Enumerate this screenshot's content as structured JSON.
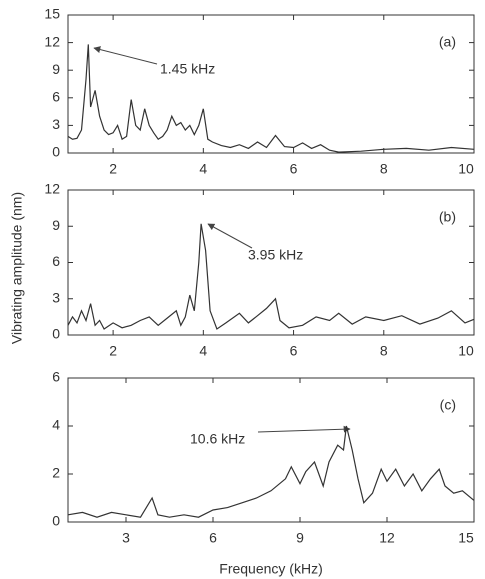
{
  "chart_data": [
    {
      "type": "line",
      "panel_label": "(a)",
      "annotation": "1.45 kHz",
      "color": "#333333",
      "xlim": [
        1,
        10
      ],
      "ylim": [
        0,
        15
      ],
      "xticks": [
        2,
        4,
        6,
        8,
        10
      ],
      "yticks": [
        0,
        3,
        6,
        9,
        12,
        15
      ],
      "x": [
        1.0,
        1.1,
        1.2,
        1.3,
        1.4,
        1.45,
        1.5,
        1.6,
        1.7,
        1.8,
        1.9,
        2.0,
        2.1,
        2.2,
        2.3,
        2.4,
        2.5,
        2.6,
        2.7,
        2.8,
        2.9,
        3.0,
        3.1,
        3.2,
        3.3,
        3.4,
        3.5,
        3.6,
        3.7,
        3.8,
        3.9,
        4.0,
        4.1,
        4.2,
        4.4,
        4.6,
        4.8,
        5.0,
        5.2,
        5.4,
        5.6,
        5.8,
        6.0,
        6.2,
        6.4,
        6.6,
        6.8,
        7.0,
        7.5,
        8.0,
        8.5,
        9.0,
        9.5,
        10
      ],
      "values": [
        1.8,
        1.5,
        1.6,
        2.5,
        8,
        11.8,
        5,
        6.8,
        4,
        2.5,
        2,
        2.2,
        3,
        1.5,
        1.8,
        5.8,
        3,
        2.5,
        4.8,
        3,
        2.2,
        1.5,
        1.8,
        2.5,
        4,
        3,
        3.3,
        2.5,
        3,
        2,
        3,
        4.8,
        1.5,
        1.2,
        0.8,
        0.6,
        0.9,
        0.5,
        1.2,
        0.6,
        1.9,
        0.7,
        0.6,
        1.1,
        0.5,
        0.9,
        0.3,
        0.1,
        0.2,
        0.4,
        0.5,
        0.3,
        0.6,
        0.4
      ]
    },
    {
      "type": "line",
      "panel_label": "(b)",
      "annotation": "3.95 kHz",
      "color": "#333333",
      "ylabel": "Vibrating amplitude (nm)",
      "xlim": [
        1,
        10
      ],
      "ylim": [
        0,
        12
      ],
      "xticks": [
        2,
        4,
        6,
        8,
        10
      ],
      "yticks": [
        0,
        3,
        6,
        9,
        12
      ],
      "x": [
        1.0,
        1.1,
        1.2,
        1.3,
        1.4,
        1.5,
        1.6,
        1.7,
        1.8,
        2.0,
        2.2,
        2.4,
        2.6,
        2.8,
        3.0,
        3.2,
        3.4,
        3.5,
        3.6,
        3.7,
        3.8,
        3.9,
        3.95,
        4.05,
        4.15,
        4.3,
        4.5,
        4.8,
        5.0,
        5.2,
        5.4,
        5.6,
        5.7,
        5.9,
        6.2,
        6.5,
        6.8,
        7.0,
        7.3,
        7.6,
        8.0,
        8.4,
        8.8,
        9.2,
        9.5,
        9.8,
        10
      ],
      "values": [
        0.8,
        1.5,
        1,
        2,
        1.2,
        2.6,
        0.8,
        1.2,
        0.5,
        1,
        0.6,
        0.8,
        1.2,
        1.5,
        0.8,
        1.4,
        2,
        0.8,
        1.5,
        3.3,
        2,
        6,
        9.2,
        7,
        2,
        0.5,
        1,
        1.8,
        1,
        1.6,
        2.2,
        3,
        1.2,
        0.6,
        0.8,
        1.5,
        1.2,
        1.8,
        0.9,
        1.5,
        1.2,
        1.6,
        0.9,
        1.4,
        2,
        1,
        1.3
      ]
    },
    {
      "type": "line",
      "panel_label": "(c)",
      "annotation": "10.6 kHz",
      "color": "#333333",
      "xlabel": "Frequency (kHz)",
      "xlim": [
        1,
        15
      ],
      "ylim": [
        0,
        6
      ],
      "xticks": [
        3,
        6,
        9,
        12,
        15
      ],
      "yticks": [
        0,
        2,
        4,
        6
      ],
      "x": [
        1,
        1.5,
        2,
        2.5,
        3,
        3.5,
        3.9,
        4.1,
        4.5,
        5,
        5.5,
        6,
        6.5,
        7,
        7.5,
        8,
        8.5,
        8.7,
        9,
        9.2,
        9.5,
        9.8,
        10,
        10.3,
        10.5,
        10.6,
        10.8,
        11,
        11.2,
        11.5,
        11.8,
        12,
        12.3,
        12.6,
        12.9,
        13.2,
        13.5,
        13.8,
        14,
        14.3,
        14.6,
        15
      ],
      "values": [
        0.3,
        0.4,
        0.2,
        0.4,
        0.3,
        0.2,
        1,
        0.3,
        0.2,
        0.3,
        0.2,
        0.5,
        0.6,
        0.8,
        1,
        1.3,
        1.8,
        2.3,
        1.6,
        2.1,
        2.5,
        1.5,
        2.5,
        3.2,
        3,
        4,
        3,
        1.8,
        0.8,
        1.2,
        2.2,
        1.7,
        2.2,
        1.5,
        2,
        1.3,
        1.8,
        2.2,
        1.5,
        1.2,
        1.3,
        0.9
      ]
    }
  ]
}
